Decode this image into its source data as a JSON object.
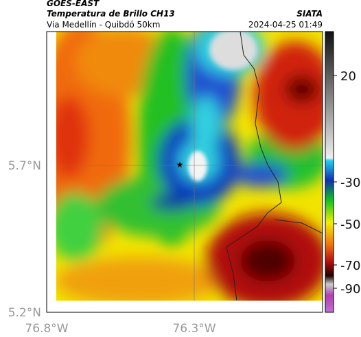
{
  "header": {
    "satellite": "GOES-EAST",
    "product": "Temperatura de Brillo CH13",
    "location": "Via Medellín - Quibdó 50km",
    "source": "SIATA",
    "datetime": "2024-04-25 01:49"
  },
  "map": {
    "latitude_labels": [
      "5.7°N",
      "5.2°N"
    ],
    "longitude_labels": [
      "76.8°W",
      "76.3°W"
    ]
  },
  "colorbar": {
    "ticks": [
      20,
      -30,
      -50,
      -70,
      -90
    ]
  }
}
